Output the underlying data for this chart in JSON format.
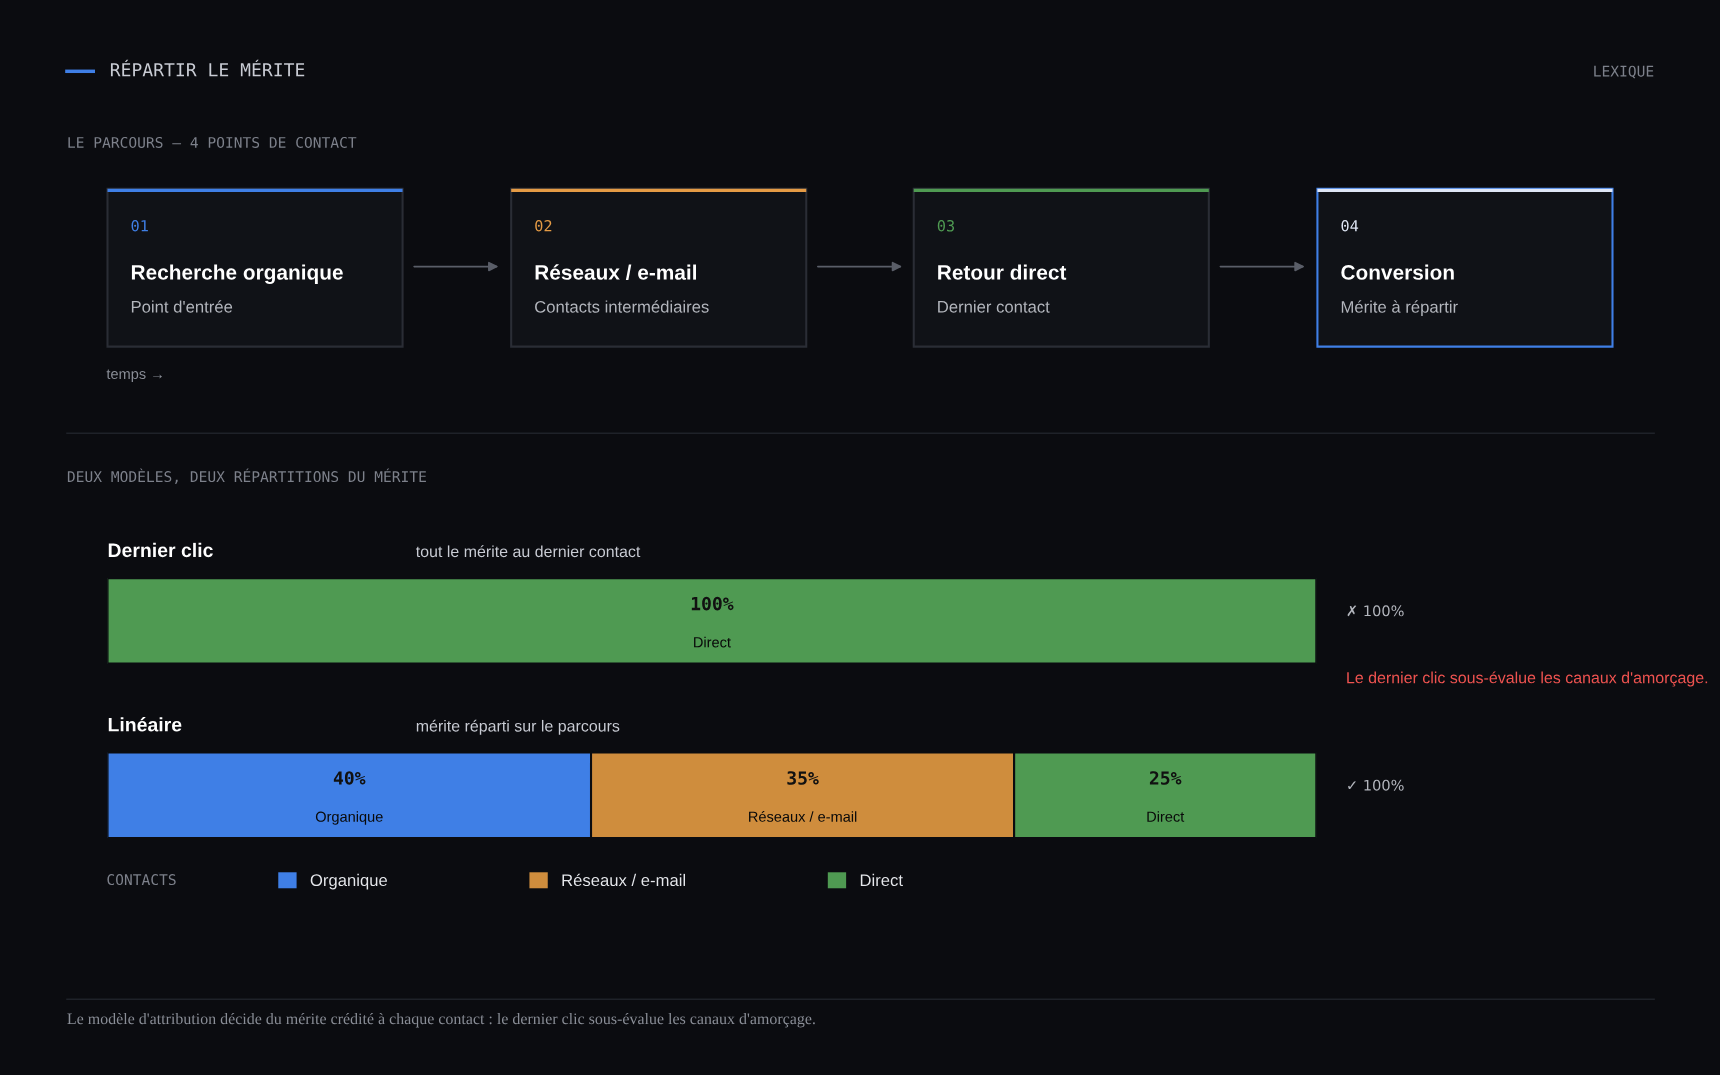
{
  "chart_data": {
    "type": "bar",
    "orientation": "horizontal",
    "stacked": true,
    "title": "RÉPARTIR LE MÉRITE",
    "subtitle": "DEUX MODÈLES, DEUX RÉPARTITIONS DU MÉRITE",
    "categories": [
      "Dernier clic",
      "Linéaire"
    ],
    "series": [
      {
        "name": "Organique",
        "color": "#3f7fe6",
        "values": [
          null,
          40
        ],
        "value_labels": [
          null,
          "40%"
        ]
      },
      {
        "name": "Réseaux / e-mail",
        "color": "#cf8d3d",
        "values": [
          null,
          35
        ],
        "value_labels": [
          null,
          "35%"
        ]
      },
      {
        "name": "Direct",
        "color": "#4f9a52",
        "values": [
          100,
          25
        ],
        "value_labels": [
          "100%",
          "25%"
        ]
      }
    ],
    "legend": "bottom",
    "legend_title": "CONTACTS",
    "annotations": [
      "LEXIQUE",
      "LE PARCOURS — 4 POINTS DE CONTACT",
      "01",
      "Recherche organique",
      "Point d'entrée",
      "02",
      "Réseaux / e-mail",
      "Contacts intermédiaires",
      "03",
      "Retour direct",
      "Dernier contact",
      "04",
      "Conversion",
      "Mérite à répartir",
      "temps →",
      "tout le mérite au dernier contact",
      "mérite réparti sur le parcours",
      "✗ 100%",
      "✓ 100%",
      "Le dernier clic sous-évalue les canaux d'amorçage.",
      "Le modèle d'attribution décide du mérite crédité à chaque contact : le dernier clic sous-évalue les canaux d'amorçage."
    ]
  }
}
